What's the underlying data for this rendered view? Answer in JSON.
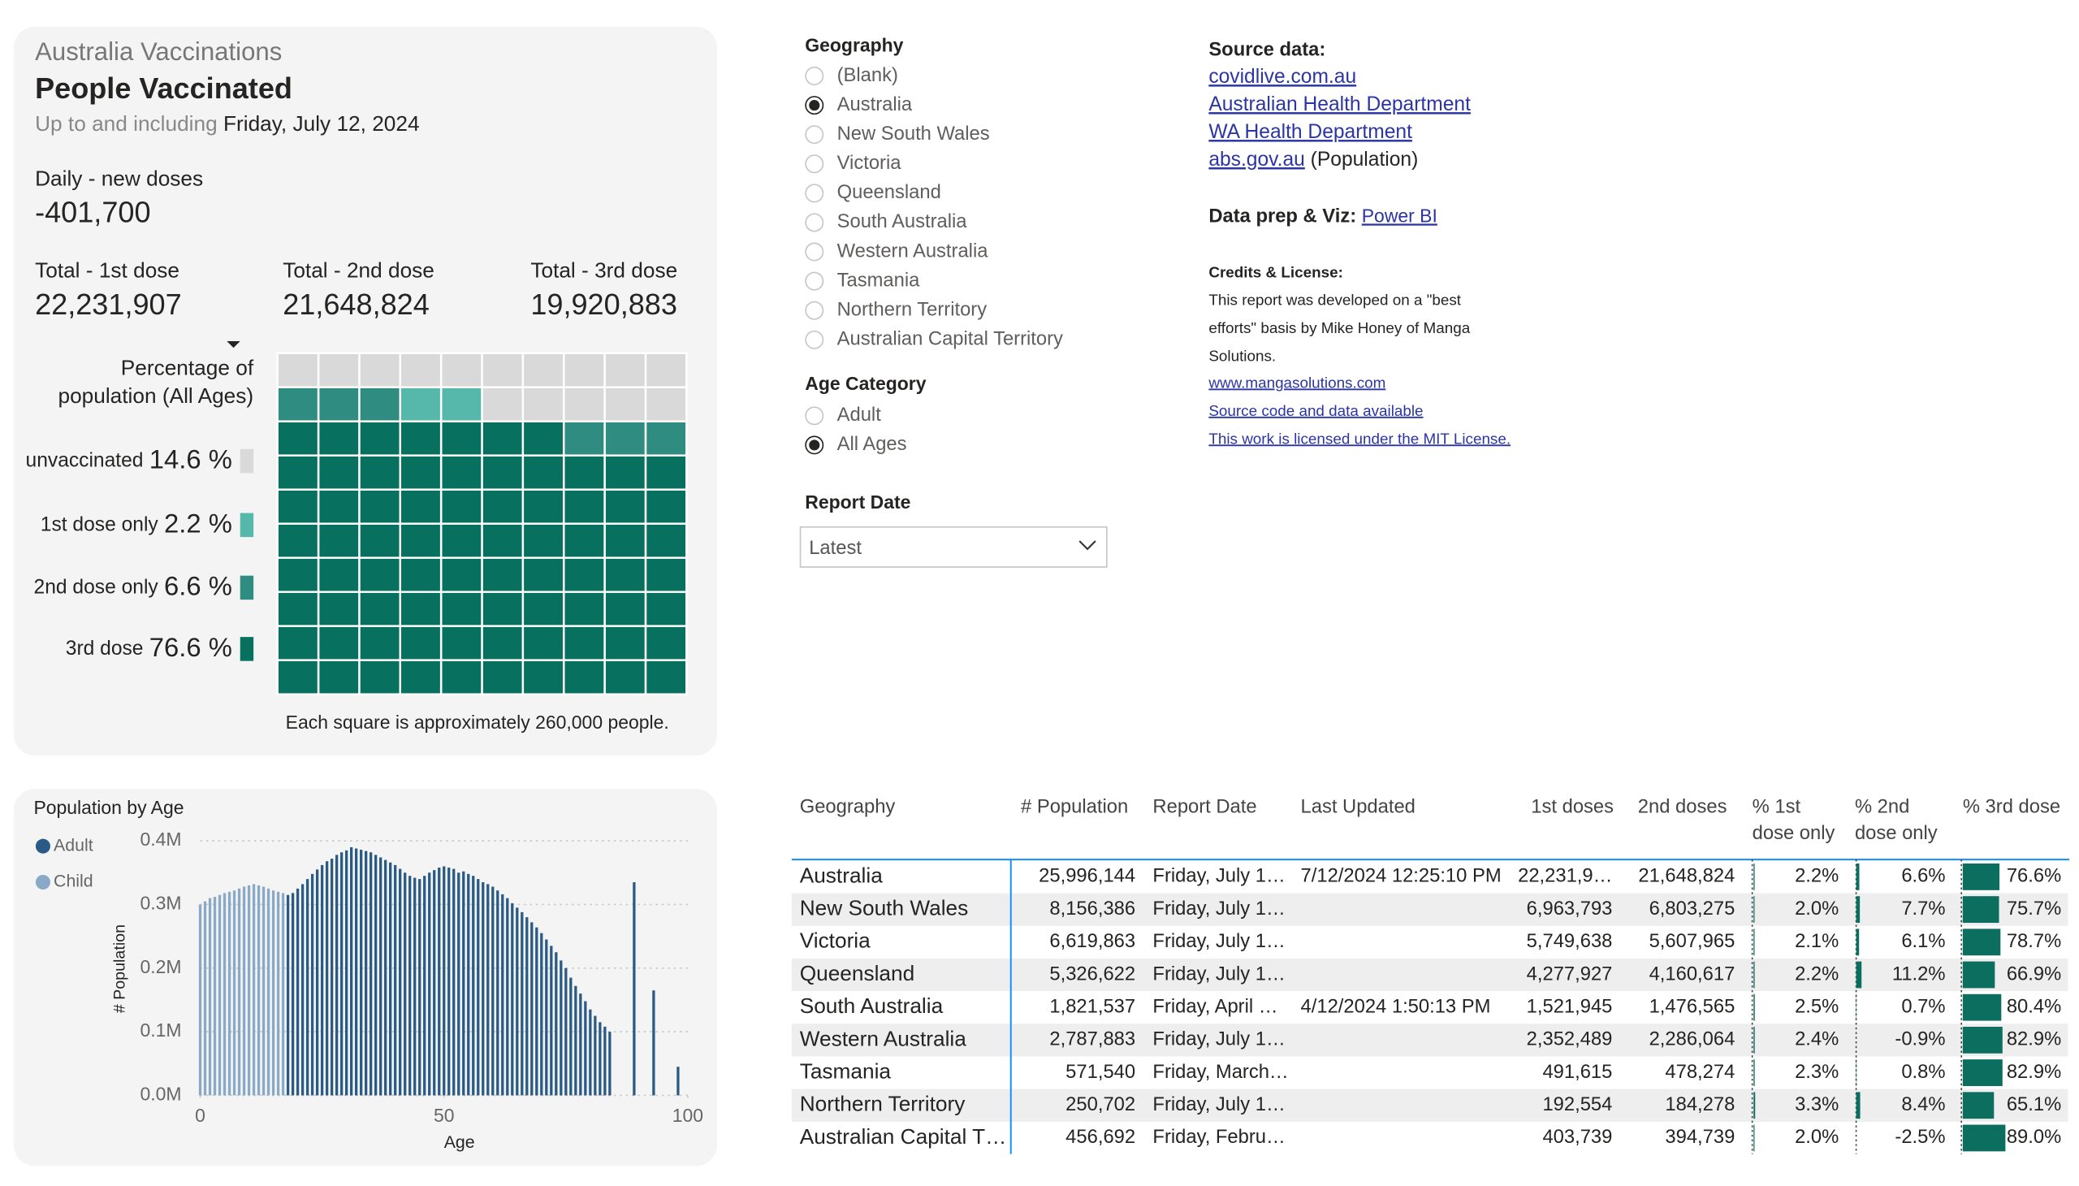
{
  "summary": {
    "kicker": "Australia Vaccinations",
    "title": "People Vaccinated",
    "date_prefix": "Up to and including",
    "date": "Friday, July 12, 2024",
    "daily_label": "Daily - new doses",
    "daily_value": "-401,700",
    "totals": [
      {
        "label": "Total - 1st dose",
        "value": "22,231,907"
      },
      {
        "label": "Total - 2nd dose",
        "value": "21,648,824"
      },
      {
        "label": "Total - 3rd dose",
        "value": "19,920,883"
      }
    ],
    "footnote": "Each square is approximately 260,000 people."
  },
  "chart_data": [
    {
      "type": "waffle",
      "title_lines": [
        "Percentage of",
        "population (All Ages)"
      ],
      "categories": [
        "unvaccinated",
        "1st dose only",
        "2nd dose only",
        "3rd dose"
      ],
      "values": [
        14.6,
        2.2,
        6.6,
        76.6
      ],
      "value_labels": [
        "14.6 %",
        "2.2 %",
        "6.6 %",
        "76.6 %"
      ],
      "colors": [
        "#d9d9d9",
        "#55b8ab",
        "#2e8c80",
        "#07705f"
      ]
    },
    {
      "type": "bar",
      "title": "Population by Age",
      "xlabel": "Age",
      "ylabel": "# Population",
      "series": [
        {
          "name": "Adult",
          "color": "#2a5a86",
          "x": [
            18,
            19,
            20,
            21,
            22,
            23,
            24,
            25,
            26,
            27,
            28,
            29,
            30,
            31,
            32,
            33,
            34,
            35,
            36,
            37,
            38,
            39,
            40,
            41,
            42,
            43,
            44,
            45,
            46,
            47,
            48,
            49,
            50,
            51,
            52,
            53,
            54,
            55,
            56,
            57,
            58,
            59,
            60,
            61,
            62,
            63,
            64,
            65,
            66,
            67,
            68,
            69,
            70,
            71,
            72,
            73,
            74,
            75,
            76,
            77,
            78,
            79,
            80,
            81,
            82,
            83,
            84,
            89,
            93,
            98
          ],
          "values": [
            315000,
            318000,
            325000,
            332000,
            340000,
            348000,
            355000,
            362000,
            368000,
            372000,
            378000,
            382000,
            385000,
            390000,
            388000,
            386000,
            384000,
            382000,
            378000,
            374000,
            370000,
            366000,
            362000,
            356000,
            350000,
            345000,
            342000,
            340000,
            345000,
            350000,
            354000,
            358000,
            360000,
            358000,
            356000,
            350000,
            352000,
            348000,
            345000,
            340000,
            335000,
            332000,
            328000,
            322000,
            316000,
            310000,
            302000,
            295000,
            288000,
            280000,
            272000,
            264000,
            255000,
            245000,
            235000,
            225000,
            212000,
            200000,
            185000,
            172000,
            160000,
            148000,
            135000,
            125000,
            115000,
            108000,
            100000,
            335000,
            165000,
            45000
          ]
        },
        {
          "name": "Child",
          "color": "#8aa9c6",
          "x": [
            0,
            1,
            2,
            3,
            4,
            5,
            6,
            7,
            8,
            9,
            10,
            11,
            12,
            13,
            14,
            15,
            16,
            17
          ],
          "values": [
            300000,
            305000,
            310000,
            312000,
            315000,
            318000,
            320000,
            322000,
            325000,
            328000,
            330000,
            332000,
            330000,
            328000,
            325000,
            322000,
            320000,
            318000
          ]
        }
      ],
      "xlim": [
        0,
        100
      ],
      "xticks": [
        0,
        50,
        100
      ],
      "ylim": [
        0,
        400000
      ],
      "yticks": [
        {
          "value": 0,
          "label": "0.0M"
        },
        {
          "value": 100000,
          "label": "0.1M"
        },
        {
          "value": 200000,
          "label": "0.2M"
        },
        {
          "value": 300000,
          "label": "0.3M"
        },
        {
          "value": 400000,
          "label": "0.4M"
        }
      ],
      "grid": true
    }
  ],
  "filters": {
    "geography": {
      "title": "Geography",
      "options": [
        "(Blank)",
        "Australia",
        "New South Wales",
        "Victoria",
        "Queensland",
        "South Australia",
        "Western Australia",
        "Tasmania",
        "Northern Territory",
        "Australian Capital Territory"
      ],
      "selected": 1
    },
    "age": {
      "title": "Age Category",
      "options": [
        "Adult",
        "All Ages"
      ],
      "selected": 1
    },
    "report_date": {
      "title": "Report Date",
      "value": "Latest"
    }
  },
  "source": {
    "heading": "Source data:",
    "links": [
      "covidlive.com.au",
      "Australian Health Department",
      "WA Health Department",
      "abs.gov.au"
    ],
    "abs_suffix": "(Population)",
    "prep_label": "Data prep & Viz:",
    "prep_link": "Power BI",
    "credits_title": "Credits & License:",
    "credits_lines": [
      "This report was developed on a \"best",
      "efforts\" basis by Mike Honey of Manga",
      "Solutions."
    ],
    "credit_links": [
      "www.mangasolutions.com",
      "Source code and data available",
      "This work is licensed under the MIT License."
    ]
  },
  "table": {
    "columns": [
      {
        "header": "Geography",
        "cells": [
          "Australia",
          "New South Wales",
          "Victoria",
          "Queensland",
          "South Australia",
          "Western Australia",
          "Tasmania",
          "Northern Territory",
          "Australian Capital T…"
        ]
      },
      {
        "header": "# Population",
        "cells": [
          "25,996,144",
          "8,156,386",
          "6,619,863",
          "5,326,622",
          "1,821,537",
          "2,787,883",
          "571,540",
          "250,702",
          "456,692"
        ]
      },
      {
        "header": "Report Date",
        "cells": [
          "Friday, July 1…",
          "Friday, July 1…",
          "Friday, July 1…",
          "Friday, July 1…",
          "Friday, April …",
          "Friday, July 1…",
          "Friday, March…",
          "Friday, July 1…",
          "Friday, Febru…"
        ]
      },
      {
        "header": "Last Updated",
        "cells": [
          "7/12/2024 12:25:10 PM",
          null,
          null,
          null,
          "4/12/2024 1:50:13 PM",
          null,
          null,
          null,
          null
        ]
      },
      {
        "header": "1st doses",
        "cells": [
          "22,231,9…",
          "6,963,793",
          "5,749,638",
          "4,277,927",
          "1,521,945",
          "2,352,489",
          "491,615",
          "192,554",
          "403,739"
        ]
      },
      {
        "header": "2nd doses",
        "cells": [
          "21,648,824",
          "6,803,275",
          "5,607,965",
          "4,160,617",
          "1,476,565",
          "2,286,064",
          "478,274",
          "184,278",
          "394,739"
        ]
      },
      {
        "header": [
          "% 1st",
          "dose only"
        ],
        "values": [
          2.2,
          2.0,
          2.1,
          2.2,
          2.5,
          2.4,
          2.3,
          3.3,
          2.0
        ],
        "value_labels": [
          "2.2%",
          "2.0%",
          "2.1%",
          "2.2%",
          "2.5%",
          "2.4%",
          "2.3%",
          "3.3%",
          "2.0%"
        ]
      },
      {
        "header": [
          "% 2nd",
          "dose only"
        ],
        "values": [
          6.6,
          7.7,
          6.1,
          11.2,
          0.7,
          -0.9,
          0.8,
          8.4,
          -2.5
        ],
        "value_labels": [
          "6.6%",
          "7.7%",
          "6.1%",
          "11.2%",
          "0.7%",
          "-0.9%",
          "0.8%",
          "8.4%",
          "-2.5%"
        ]
      },
      {
        "header": "% 3rd dose",
        "values": [
          76.6,
          75.7,
          78.7,
          66.9,
          80.4,
          82.9,
          82.9,
          65.1,
          89.0
        ],
        "value_labels": [
          "76.6%",
          "75.7%",
          "78.7%",
          "66.9%",
          "80.4%",
          "82.9%",
          "82.9%",
          "65.1%",
          "89.0%"
        ]
      }
    ]
  }
}
